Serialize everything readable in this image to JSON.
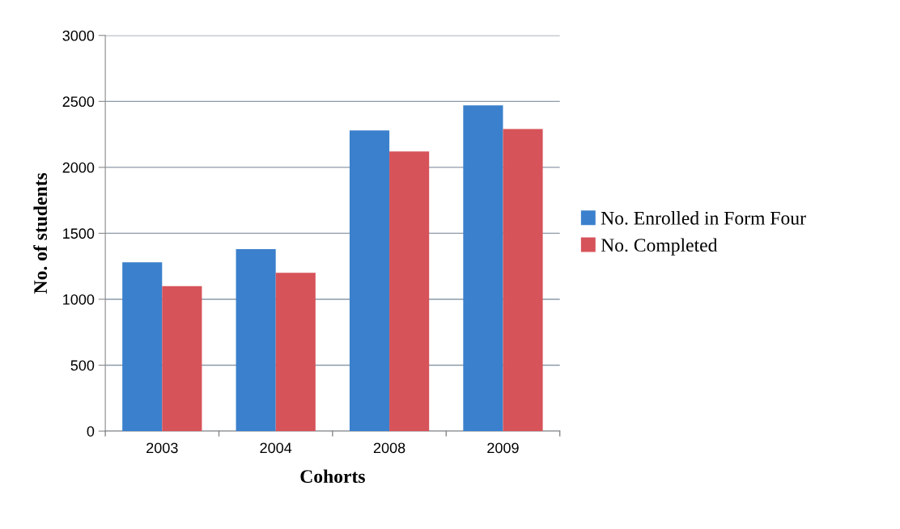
{
  "chart_data": {
    "type": "bar",
    "xlabel": "Cohorts",
    "ylabel": "No. of students",
    "categories": [
      "2003",
      "2004",
      "2008",
      "2009"
    ],
    "series": [
      {
        "name": "No. Enrolled in Form Four",
        "color": "#3b80cc",
        "values": [
          1280,
          1380,
          2280,
          2470
        ]
      },
      {
        "name": "No. Completed",
        "color": "#d65359",
        "values": [
          1100,
          1200,
          2120,
          2290
        ]
      }
    ],
    "ylim": [
      0,
      3000
    ],
    "yticks": [
      0,
      500,
      1000,
      1500,
      2000,
      2500,
      3000
    ],
    "grid": "y",
    "legend": "right"
  }
}
